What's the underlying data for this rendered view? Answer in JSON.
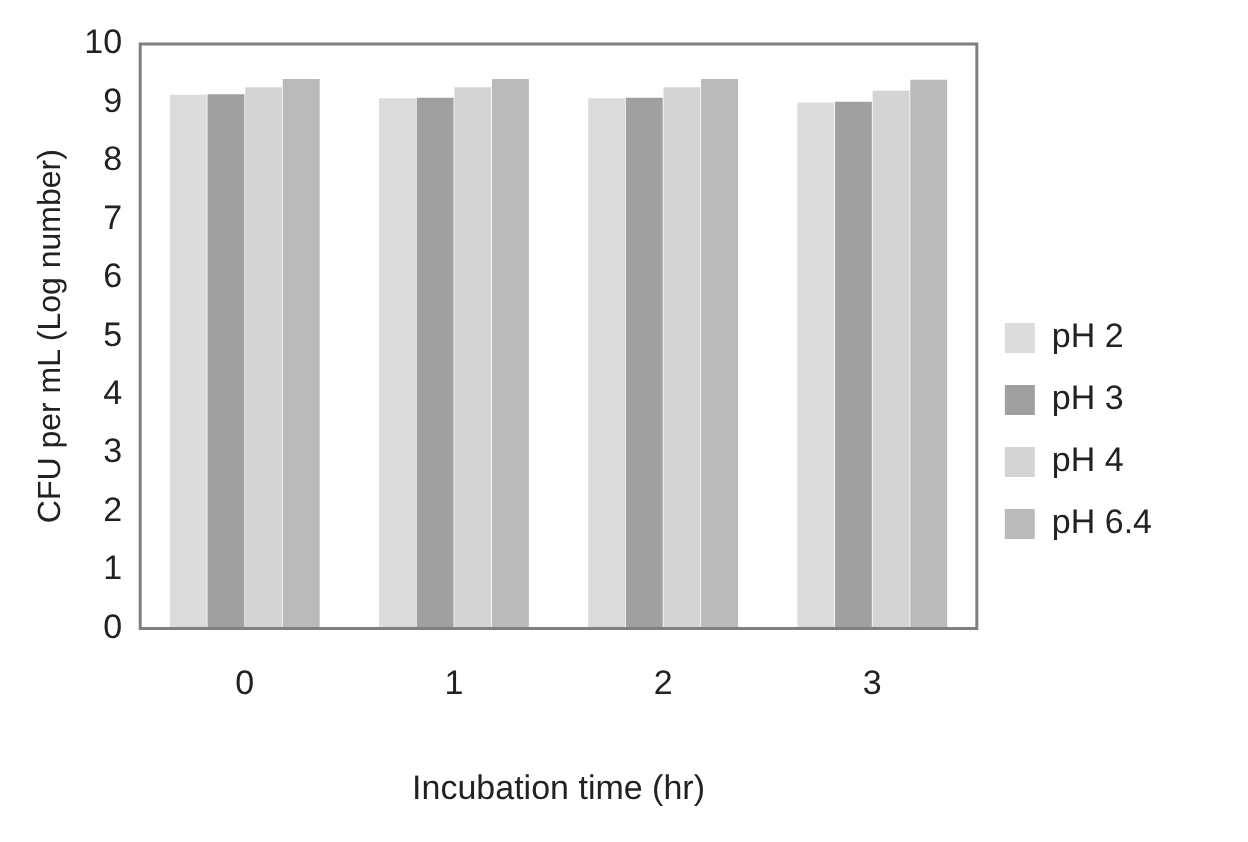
{
  "chart_data": {
    "type": "bar",
    "xlabel": "Incubation time (hr)",
    "ylabel": "CFU per mL (Log number)",
    "categories": [
      "0",
      "1",
      "2",
      "3"
    ],
    "series": [
      {
        "name": "pH 2",
        "color": "#dcdcdc",
        "values": [
          9.13,
          9.07,
          9.07,
          9.0
        ]
      },
      {
        "name": "pH 3",
        "color": "#a0a0a0",
        "values": [
          9.14,
          9.08,
          9.08,
          9.01
        ]
      },
      {
        "name": "pH 4",
        "color": "#d4d4d4",
        "values": [
          9.26,
          9.26,
          9.26,
          9.2
        ]
      },
      {
        "name": "pH 6.4",
        "color": "#bababa",
        "values": [
          9.4,
          9.4,
          9.4,
          9.39
        ]
      }
    ],
    "ylim": [
      0,
      10
    ],
    "yticks": [
      0,
      1,
      2,
      3,
      4,
      5,
      6,
      7,
      8,
      9,
      10
    ],
    "grid": false,
    "legend": "right"
  }
}
